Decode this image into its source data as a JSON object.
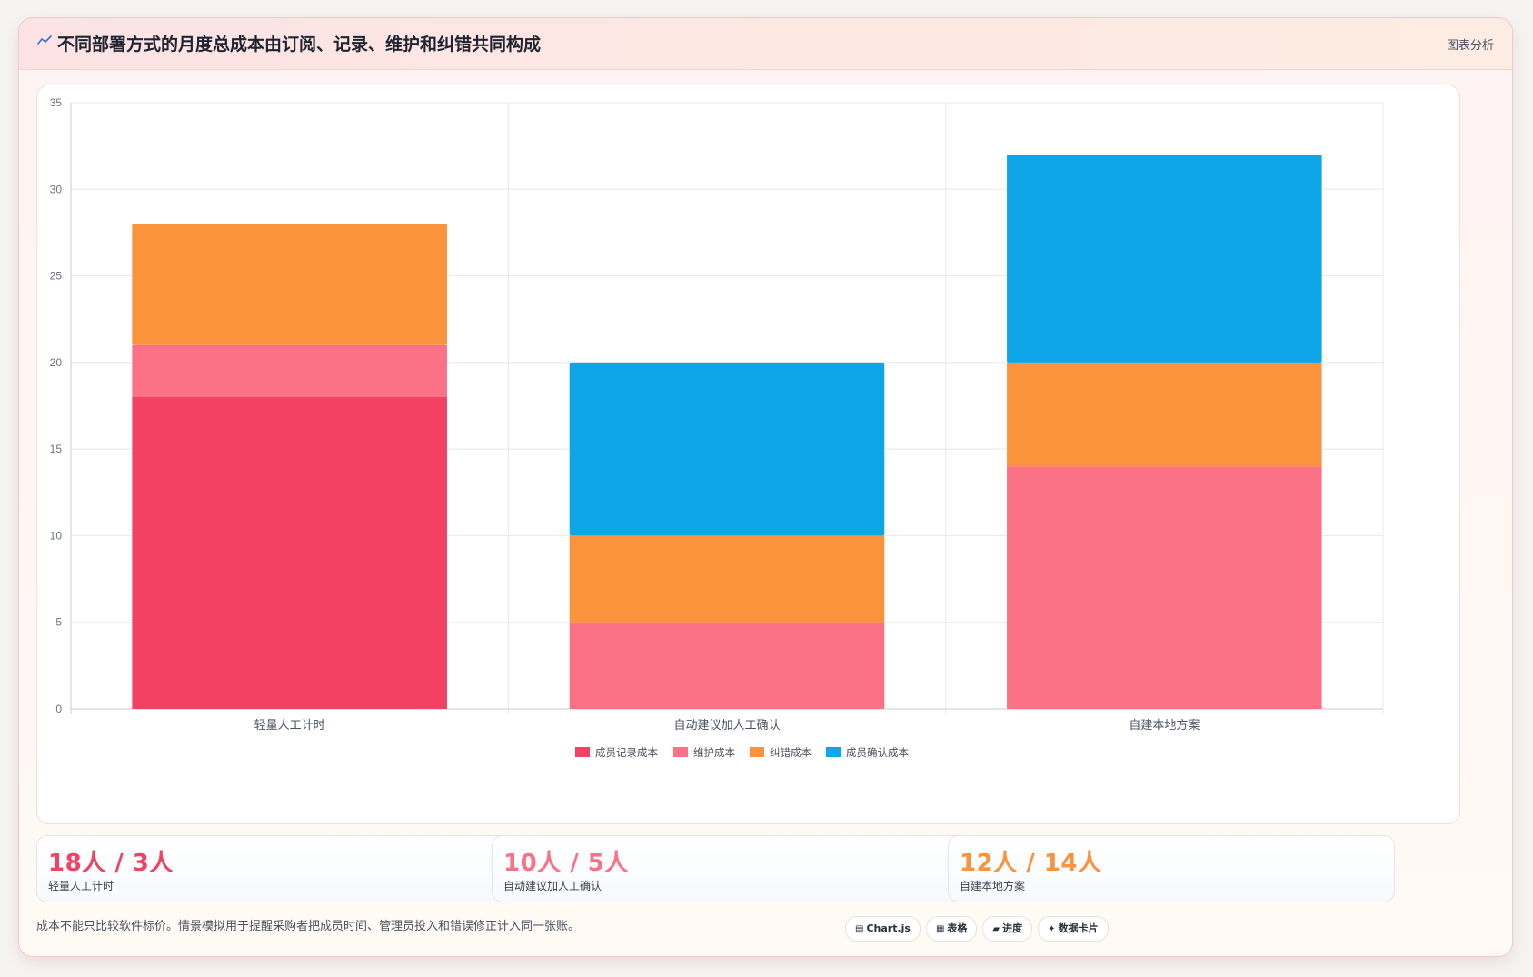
{
  "header": {
    "title": "不同部署方式的月度总成本由订阅、记录、维护和纠错共同构成",
    "tag": "图表分析",
    "icon": "trend-line-icon"
  },
  "chart_data": {
    "type": "bar",
    "stacked": true,
    "categories": [
      "轻量人工计时",
      "自动建议加人工确认",
      "自建本地方案"
    ],
    "series": [
      {
        "name": "成员记录成本",
        "color": "#f24162",
        "values": [
          18,
          0,
          0
        ]
      },
      {
        "name": "维护成本",
        "color": "#fb7185",
        "values": [
          3,
          5,
          14
        ]
      },
      {
        "name": "纠错成本",
        "color": "#fb923c",
        "values": [
          7,
          5,
          6
        ]
      },
      {
        "name": "成员确认成本",
        "color": "#0ea5e9",
        "values": [
          0,
          10,
          12
        ]
      }
    ],
    "ylim": [
      0,
      35
    ],
    "yticks": [
      "0",
      "5",
      "10",
      "15",
      "20",
      "25",
      "30",
      "35"
    ],
    "grid": true,
    "legend": "bottom"
  },
  "stats": [
    {
      "value": "18人 / 3人",
      "label": "轻量人工计时",
      "color": "#f24162"
    },
    {
      "value": "10人 / 5人",
      "label": "自动建议加人工确认",
      "color": "#fb7185"
    },
    {
      "value": "12人 / 14人",
      "label": "自建本地方案",
      "color": "#fb923c"
    }
  ],
  "footer": {
    "note": "成本不能只比较软件标价。情景模拟用于提醒采购者把成员时间、管理员投入和错误修正计入同一张账。",
    "badges": [
      {
        "label": "Chart.js",
        "icon": "chart-icon",
        "glyph": "▤"
      },
      {
        "label": "表格",
        "icon": "table-icon",
        "glyph": "▦"
      },
      {
        "label": "进度",
        "icon": "progress-icon",
        "glyph": "▰"
      },
      {
        "label": "数据卡片",
        "icon": "sparkle-icon",
        "glyph": "✦"
      }
    ]
  }
}
